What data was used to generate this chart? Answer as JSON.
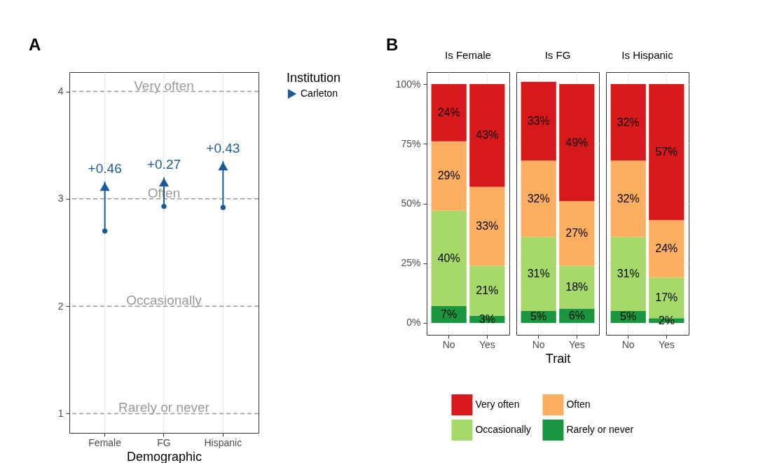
{
  "chart_data": [
    {
      "type": "bar",
      "annotations": [
        "A"
      ],
      "categories": [
        "Female",
        "FG",
        "Hispanic"
      ],
      "series": [
        {
          "name": "Carleton",
          "color": "#1a5a99",
          "base": [
            2.7,
            2.93,
            2.92
          ],
          "values": [
            0.46,
            0.27,
            0.43
          ],
          "value_labels": [
            "+0.46",
            "+0.27",
            "+0.43"
          ]
        }
      ],
      "xlabel": "Demographic",
      "legend_title": "Institution",
      "legend": "right",
      "ylim": [
        0.82,
        4.18
      ],
      "yticks": [
        1,
        2,
        3,
        4
      ],
      "grid": "x",
      "ref_lines": [
        {
          "axis": "y",
          "value": 1,
          "label": "Rarely or never",
          "color": "#999999",
          "line_style": "dashed"
        },
        {
          "axis": "y",
          "value": 2,
          "label": "Occasionally",
          "color": "#999999",
          "line_style": "dashed"
        },
        {
          "axis": "y",
          "value": 3,
          "label": "Often",
          "color": "#999999",
          "line_style": "dashed"
        },
        {
          "axis": "y",
          "value": 4,
          "label": "Very often",
          "color": "#999999",
          "line_style": "dashed"
        }
      ]
    },
    {
      "type": "bar",
      "stacked": true,
      "title": "Is Female",
      "annotations": [
        "B"
      ],
      "categories": [
        "No",
        "Yes"
      ],
      "legend": "bottom",
      "series": [
        {
          "name": "Rarely or never",
          "color": "#1a9641",
          "values": [
            7,
            3
          ],
          "value_labels": [
            "7%",
            "3%"
          ]
        },
        {
          "name": "Occasionally",
          "color": "#a6d96a",
          "values": [
            40,
            21
          ],
          "value_labels": [
            "40%",
            "21%"
          ]
        },
        {
          "name": "Often",
          "color": "#fdae61",
          "values": [
            29,
            33
          ],
          "value_labels": [
            "29%",
            "33%"
          ]
        },
        {
          "name": "Very often",
          "color": "#d7191c",
          "values": [
            24,
            43
          ],
          "value_labels": [
            "24%",
            "43%"
          ]
        }
      ],
      "ylim": [
        -5,
        105
      ],
      "yticks": [
        {
          "value": 0,
          "label": "0%"
        },
        {
          "value": 25,
          "label": "25%"
        },
        {
          "value": 50,
          "label": "50%"
        },
        {
          "value": 75,
          "label": "75%"
        },
        {
          "value": 100,
          "label": "100%"
        }
      ],
      "grid": true
    },
    {
      "type": "bar",
      "stacked": true,
      "title": "Is FG",
      "categories": [
        "No",
        "Yes"
      ],
      "series": [
        {
          "color": "#1a9641",
          "values": [
            5,
            6
          ],
          "value_labels": [
            "5%",
            "6%"
          ]
        },
        {
          "color": "#a6d96a",
          "values": [
            31,
            18
          ],
          "value_labels": [
            "31%",
            "18%"
          ]
        },
        {
          "color": "#fdae61",
          "values": [
            32,
            27
          ],
          "value_labels": [
            "32%",
            "27%"
          ]
        },
        {
          "color": "#d7191c",
          "values": [
            33,
            49
          ],
          "value_labels": [
            "33%",
            "49%"
          ]
        }
      ],
      "xlabel": "Trait",
      "tick_labels": "x",
      "ylim": [
        -5,
        105
      ],
      "yticks": [
        0,
        25,
        50,
        75,
        100
      ],
      "grid": true
    },
    {
      "type": "bar",
      "stacked": true,
      "title": "Is Hispanic",
      "categories": [
        "No",
        "Yes"
      ],
      "series": [
        {
          "color": "#1a9641",
          "values": [
            5,
            2
          ],
          "value_labels": [
            "5%",
            "2%"
          ]
        },
        {
          "color": "#a6d96a",
          "values": [
            31,
            17
          ],
          "value_labels": [
            "31%",
            "17%"
          ]
        },
        {
          "color": "#fdae61",
          "values": [
            32,
            24
          ],
          "value_labels": [
            "32%",
            "24%"
          ]
        },
        {
          "color": "#d7191c",
          "values": [
            32,
            57
          ],
          "value_labels": [
            "32%",
            "57%"
          ]
        }
      ],
      "tick_labels": "x",
      "ylim": [
        -5,
        105
      ],
      "yticks": [
        0,
        25,
        50,
        75,
        100
      ],
      "grid": true
    }
  ]
}
